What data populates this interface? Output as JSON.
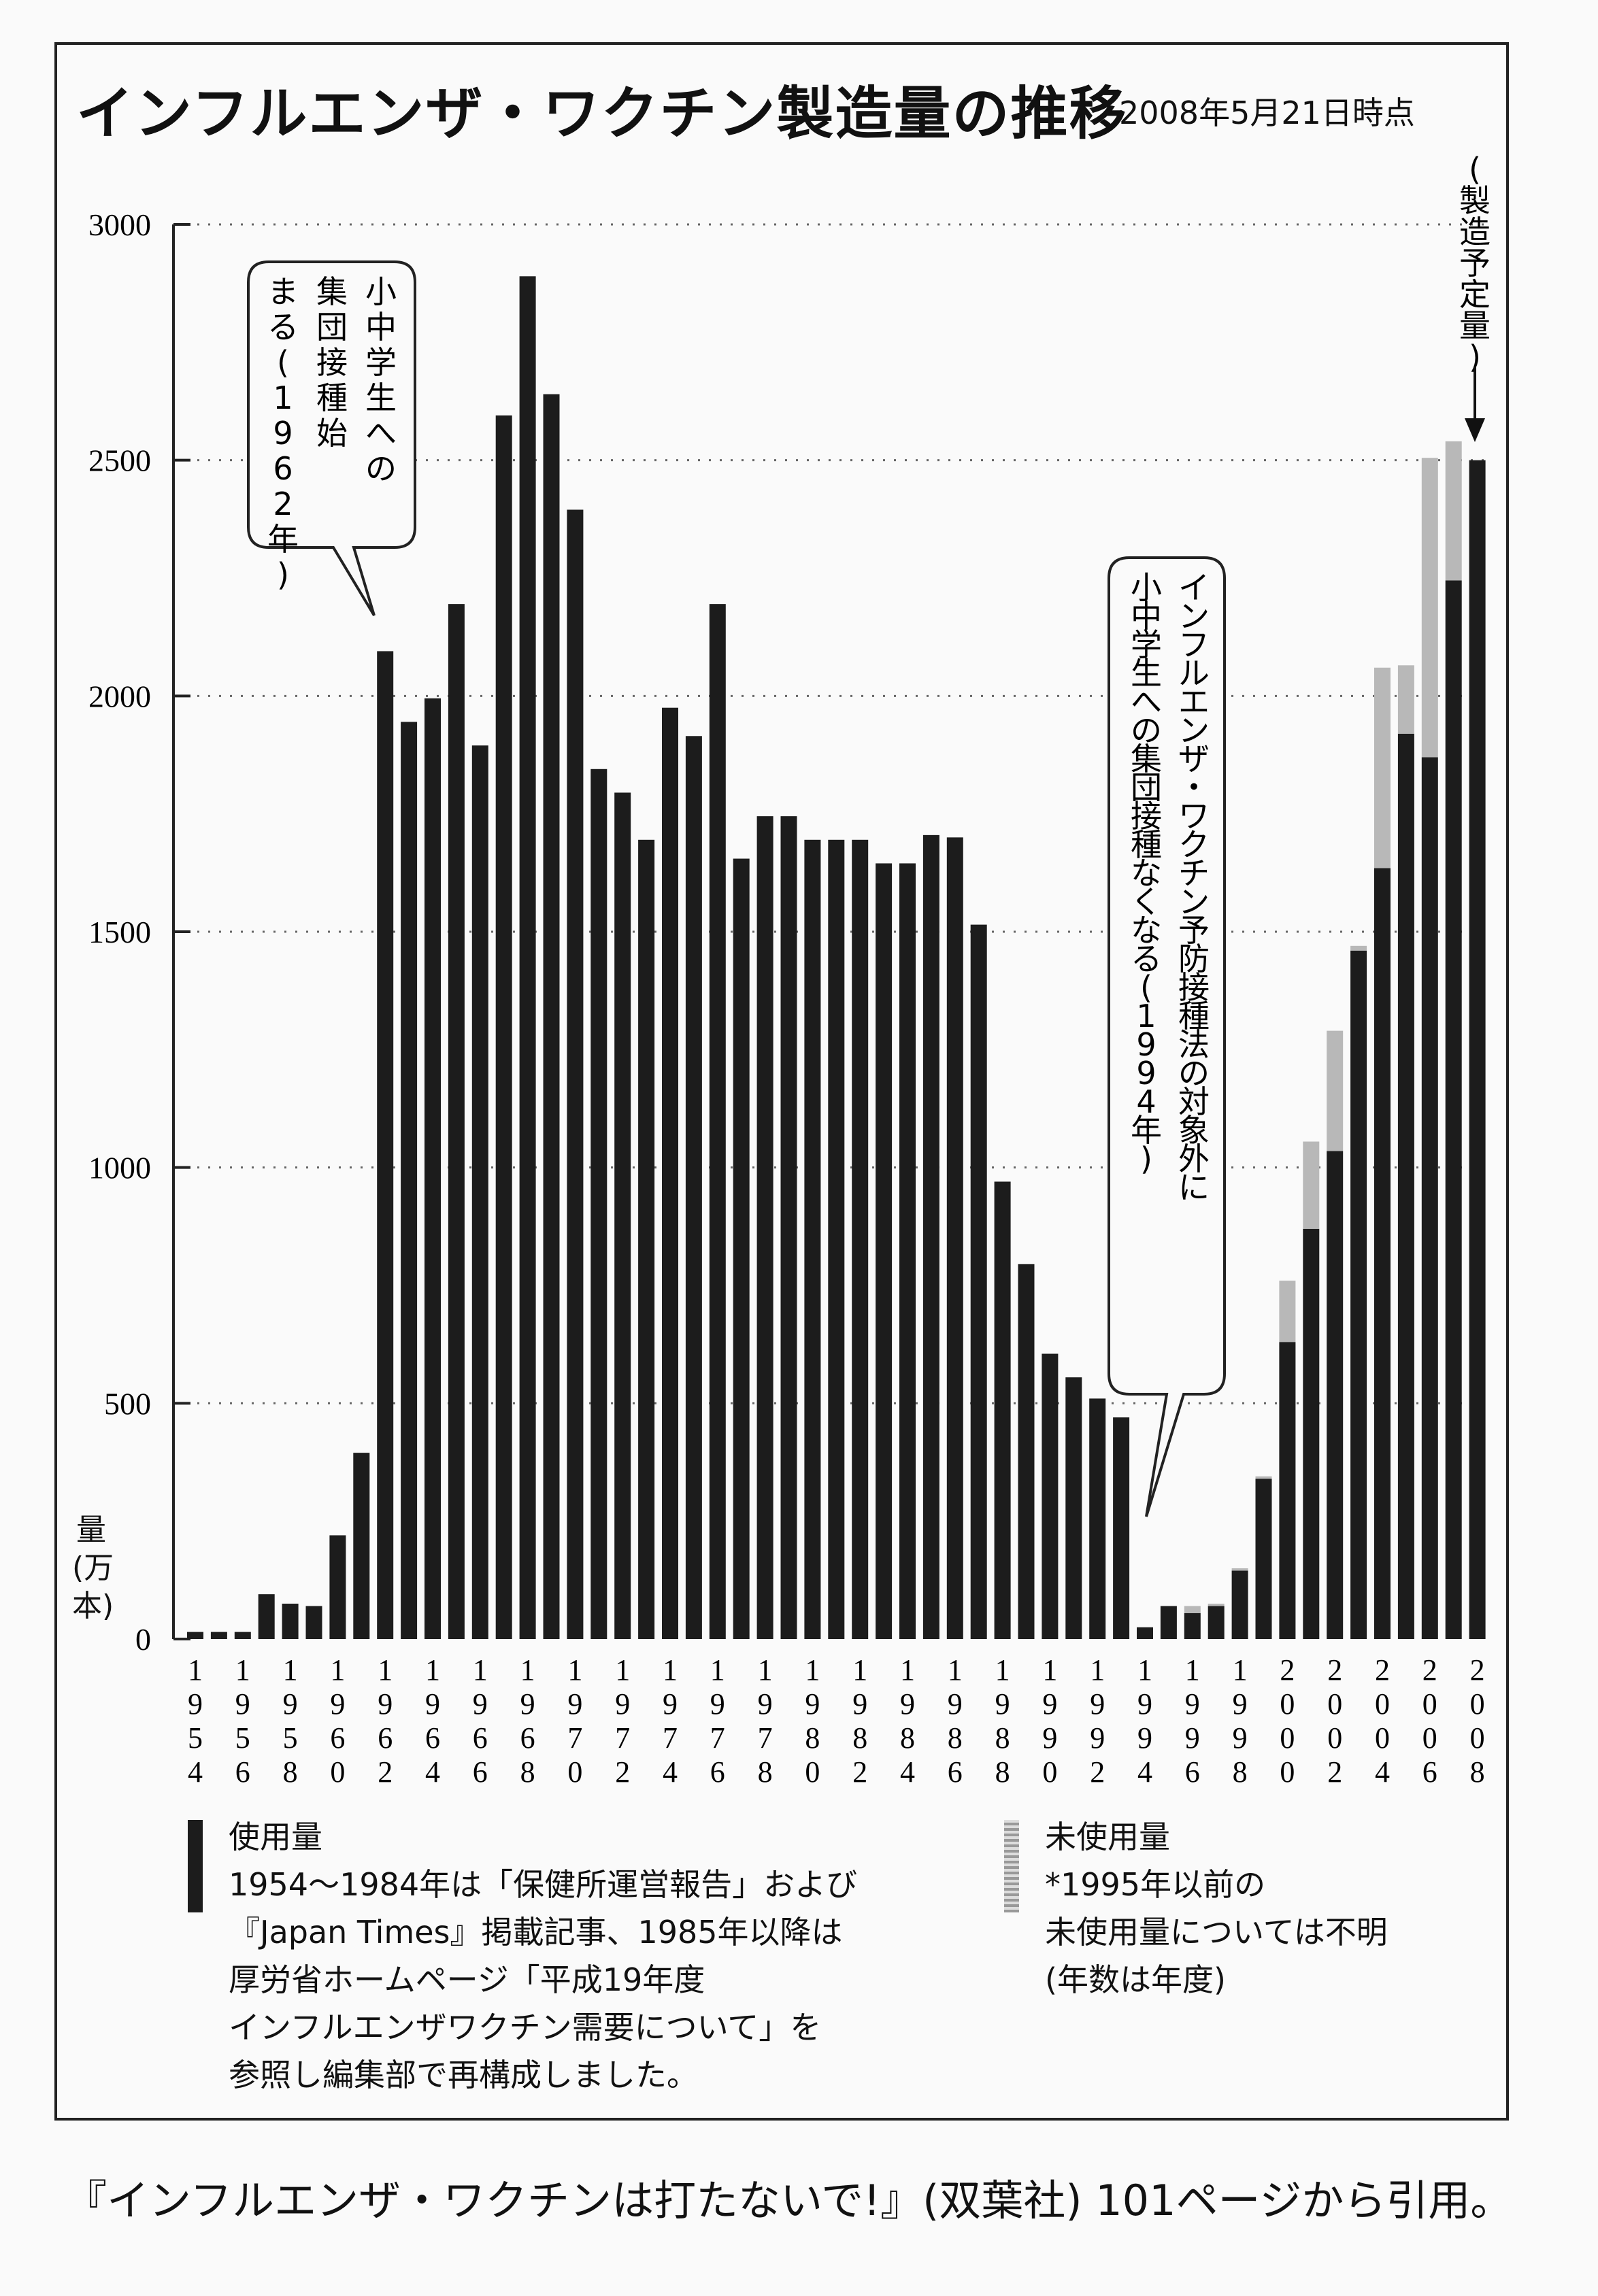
{
  "title": "インフルエンザ・ワクチン製造量の推移",
  "date_note": "2008年5月21日時点",
  "ylabel": "量(万本)",
  "planned_label": "(製造予定量)",
  "callout_1962": "小中学生への集団接種始まる(1962年)",
  "callout_1994": "インフルエンザ・ワクチン予防接種法の対象外に小中学生への集団接種なくなる(1994年)",
  "legend": {
    "used_title": "使用量",
    "used_note": "1954〜1984年は「保健所運営報告」および\n『Japan Times』掲載記事、1985年以降は\n厚労省ホームページ「平成19年度\nインフルエンザワクチン需要について」を\n参照し編集部で再構成しました。",
    "unused_title": "未使用量",
    "unused_note": "*1995年以前の\n未使用量については不明\n(年数は年度)"
  },
  "footer": "『インフルエンザ・ワクチンは打たないで!』(双葉社) 101ページから引用。",
  "colors": {
    "used": "#1c1c1c",
    "unused": "#b8b8b8",
    "grid": "#666666"
  },
  "chart_data": {
    "type": "bar",
    "stacked": true,
    "ylim": [
      0,
      3000
    ],
    "yticks": [
      0,
      500,
      1000,
      1500,
      2000,
      2500,
      3000
    ],
    "xtick_labels": [
      "1954",
      "1956",
      "1958",
      "1960",
      "1962",
      "1964",
      "1966",
      "1968",
      "1970",
      "1972",
      "1974",
      "1976",
      "1978",
      "1980",
      "1982",
      "1984",
      "1986",
      "1988",
      "1990",
      "1992",
      "1994",
      "1996",
      "1998",
      "2000",
      "2002",
      "2004",
      "2006",
      "2008"
    ],
    "categories": [
      1954,
      1955,
      1956,
      1957,
      1958,
      1959,
      1960,
      1961,
      1962,
      1963,
      1964,
      1965,
      1966,
      1967,
      1968,
      1969,
      1970,
      1971,
      1972,
      1973,
      1974,
      1975,
      1976,
      1977,
      1978,
      1979,
      1980,
      1981,
      1982,
      1983,
      1984,
      1985,
      1986,
      1987,
      1988,
      1989,
      1990,
      1991,
      1992,
      1993,
      1994,
      1995,
      1996,
      1997,
      1998,
      1999,
      2000,
      2001,
      2002,
      2003,
      2004,
      2005,
      2006,
      2007,
      2008
    ],
    "series": [
      {
        "name": "使用量",
        "values": [
          15,
          15,
          15,
          95,
          75,
          70,
          220,
          395,
          2095,
          1945,
          1995,
          2195,
          1895,
          2595,
          2890,
          2640,
          2395,
          1845,
          1795,
          1695,
          1975,
          1915,
          2195,
          1655,
          1745,
          1745,
          1695,
          1695,
          1695,
          1645,
          1645,
          1705,
          1700,
          1515,
          970,
          795,
          605,
          555,
          510,
          470,
          25,
          70,
          55,
          70,
          145,
          340,
          630,
          870,
          1035,
          1460,
          1635,
          1920,
          1870,
          2245,
          2500
        ]
      },
      {
        "name": "未使用量",
        "values": [
          0,
          0,
          0,
          0,
          0,
          0,
          0,
          0,
          0,
          0,
          0,
          0,
          0,
          0,
          0,
          0,
          0,
          0,
          0,
          0,
          0,
          0,
          0,
          0,
          0,
          0,
          0,
          0,
          0,
          0,
          0,
          0,
          0,
          0,
          0,
          0,
          0,
          0,
          0,
          0,
          0,
          0,
          15,
          5,
          5,
          5,
          130,
          185,
          255,
          10,
          425,
          145,
          635,
          295,
          0
        ]
      }
    ]
  }
}
